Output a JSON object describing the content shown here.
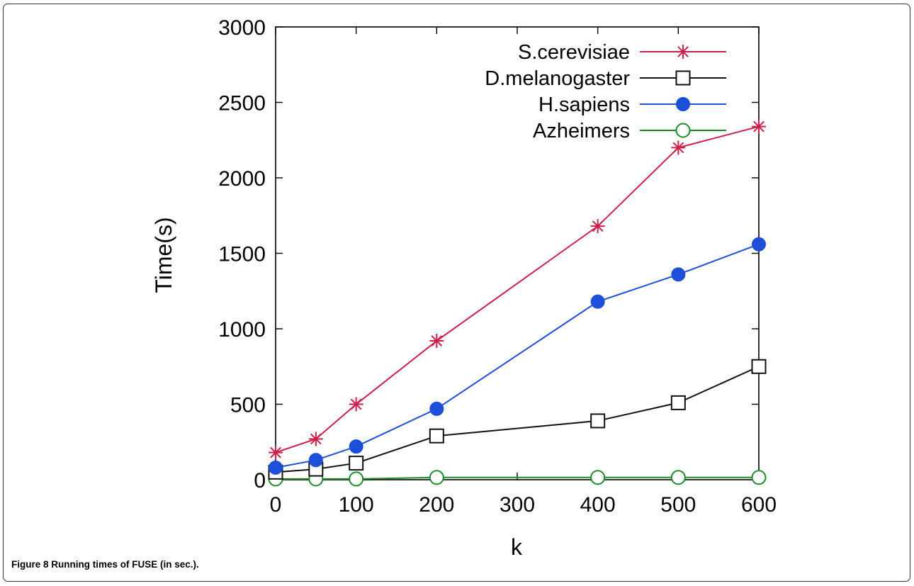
{
  "caption": {
    "label": "Figure 8",
    "text": "Running times of FUSE (in sec.)."
  },
  "chart_data": {
    "type": "line",
    "xlabel": "k",
    "ylabel": "Time(s)",
    "xlim": [
      0,
      600
    ],
    "ylim": [
      0,
      3000
    ],
    "xticks": [
      0,
      100,
      200,
      300,
      400,
      500,
      600
    ],
    "yticks": [
      0,
      500,
      1000,
      1500,
      2000,
      2500,
      3000
    ],
    "grid": false,
    "legend_position": "top-right",
    "series": [
      {
        "name": "S.cerevisiae",
        "color": "#cc1f4a",
        "marker": "asterisk",
        "x": [
          0,
          50,
          100,
          200,
          400,
          500,
          600
        ],
        "y": [
          180,
          270,
          500,
          920,
          1680,
          2200,
          2340
        ]
      },
      {
        "name": "D.melanogaster",
        "color": "#111111",
        "marker": "open-square",
        "x": [
          0,
          50,
          100,
          200,
          400,
          500,
          600
        ],
        "y": [
          50,
          70,
          110,
          290,
          390,
          510,
          750
        ]
      },
      {
        "name": "H.sapiens",
        "color": "#1d4fd8",
        "marker": "filled-circle",
        "x": [
          0,
          50,
          100,
          200,
          400,
          500,
          600
        ],
        "y": [
          80,
          130,
          220,
          470,
          1180,
          1360,
          1560
        ]
      },
      {
        "name": "Azheimers",
        "color": "#1e8a2a",
        "marker": "open-circle",
        "x": [
          0,
          50,
          100,
          200,
          400,
          500,
          600
        ],
        "y": [
          5,
          5,
          5,
          15,
          15,
          15,
          15
        ]
      }
    ]
  }
}
